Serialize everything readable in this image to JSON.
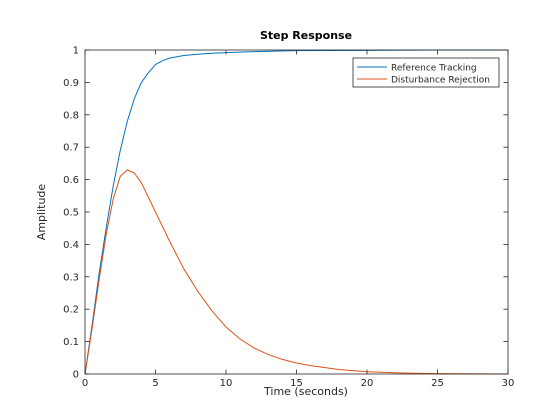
{
  "chart_data": {
    "type": "line",
    "title": "Step Response",
    "xlabel": "Time (seconds)",
    "ylabel": "Amplitude",
    "xlim": [
      0,
      30
    ],
    "ylim": [
      0,
      1
    ],
    "xticks": [
      0,
      5,
      10,
      15,
      20,
      25,
      30
    ],
    "yticks": [
      0,
      0.1,
      0.2,
      0.3,
      0.4,
      0.5,
      0.6,
      0.7,
      0.8,
      0.9,
      1
    ],
    "grid": false,
    "legend_location": "top-right",
    "series": [
      {
        "name": "Reference Tracking",
        "color": "#0072BD",
        "x": [
          0,
          0.5,
          1,
          1.5,
          2,
          2.5,
          3,
          3.5,
          4,
          4.5,
          5,
          5.5,
          6,
          7,
          8,
          9,
          10,
          12,
          15,
          20,
          25,
          30
        ],
        "y": [
          0,
          0.15,
          0.31,
          0.45,
          0.58,
          0.69,
          0.78,
          0.85,
          0.9,
          0.93,
          0.955,
          0.967,
          0.975,
          0.983,
          0.987,
          0.99,
          0.992,
          0.995,
          0.998,
          0.999,
          1.0,
          1.0
        ]
      },
      {
        "name": "Disturbance Rejection",
        "color": "#D95319",
        "x": [
          0,
          0.5,
          1,
          1.5,
          2,
          2.5,
          3,
          3.5,
          4,
          5,
          6,
          7,
          8,
          9,
          10,
          11,
          12,
          13,
          14,
          15,
          16,
          18,
          20,
          22.5,
          25,
          30
        ],
        "y": [
          0,
          0.14,
          0.29,
          0.43,
          0.54,
          0.61,
          0.63,
          0.62,
          0.59,
          0.5,
          0.41,
          0.325,
          0.255,
          0.195,
          0.145,
          0.108,
          0.08,
          0.06,
          0.045,
          0.034,
          0.026,
          0.014,
          0.007,
          0.003,
          0.001,
          0
        ]
      }
    ]
  }
}
